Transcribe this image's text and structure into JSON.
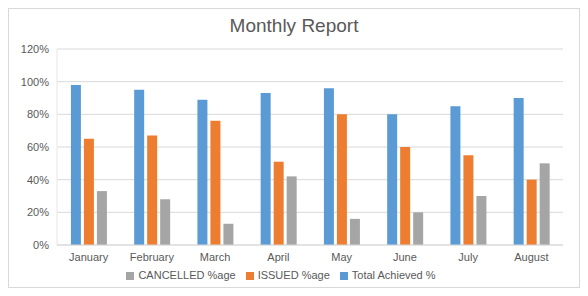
{
  "chart_data": {
    "type": "bar",
    "title": "Monthly Report",
    "categories": [
      "January",
      "February",
      "March",
      "April",
      "May",
      "June",
      "July",
      "August"
    ],
    "series": [
      {
        "name": "Total Achieved %",
        "color": "#5b9bd5",
        "values": [
          98,
          95,
          89,
          93,
          96,
          80,
          85,
          90
        ]
      },
      {
        "name": "ISSUED %age",
        "color": "#ed7d31",
        "values": [
          65,
          67,
          76,
          51,
          80,
          60,
          55,
          40
        ]
      },
      {
        "name": "CANCELLED %age",
        "color": "#a5a5a5",
        "values": [
          33,
          28,
          13,
          42,
          16,
          20,
          30,
          50
        ]
      }
    ],
    "ylim": [
      0,
      120
    ],
    "yticks": [
      {
        "value": 0,
        "label": "0%"
      },
      {
        "value": 20,
        "label": "20%"
      },
      {
        "value": 40,
        "label": "40%"
      },
      {
        "value": 60,
        "label": "60%"
      },
      {
        "value": 80,
        "label": "80%"
      },
      {
        "value": 100,
        "label": "100%"
      },
      {
        "value": 120,
        "label": "120%"
      }
    ],
    "grid": true,
    "legend": "bottom"
  }
}
